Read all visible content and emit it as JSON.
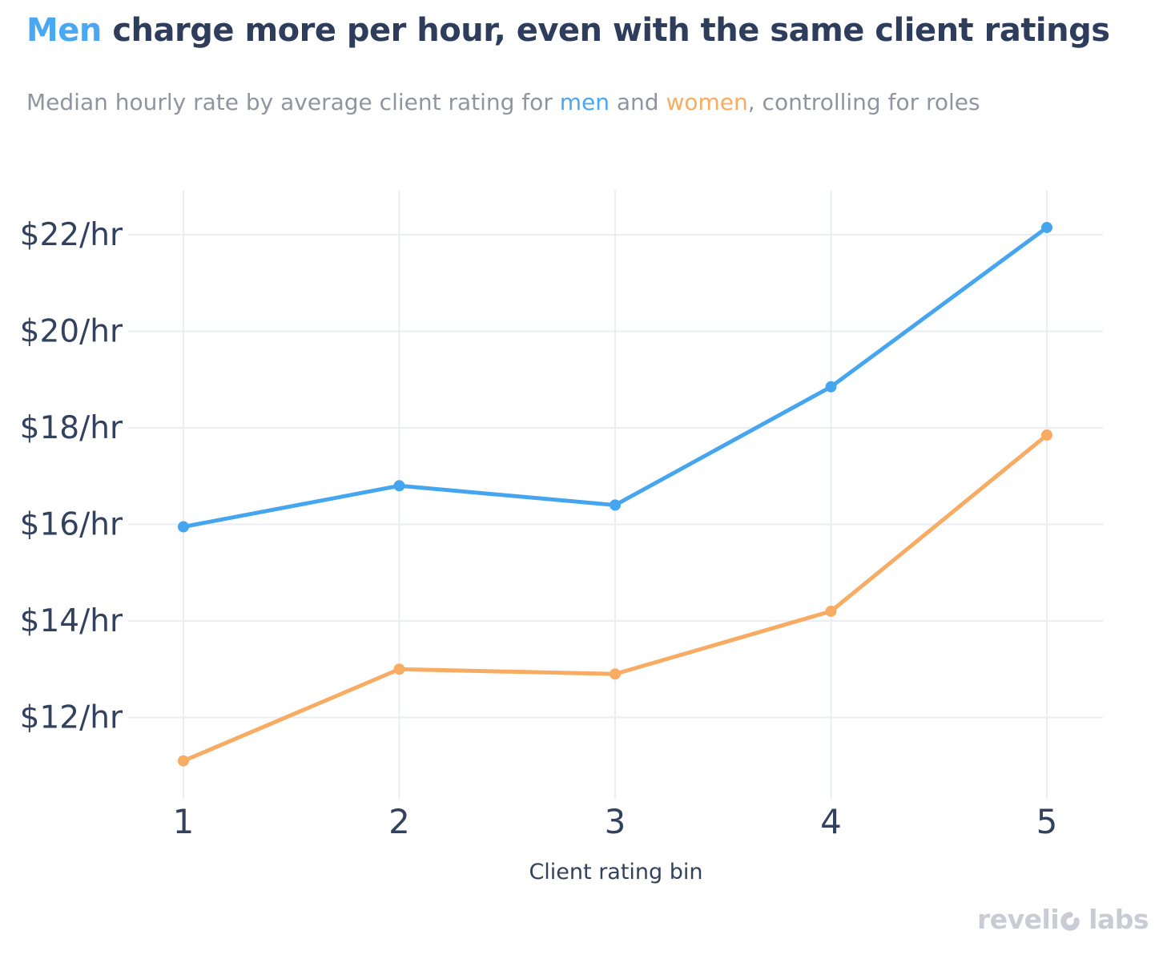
{
  "colors": {
    "navy": "#2e3d5b",
    "axis": "#32415e",
    "blue_text": "#4aa7f2",
    "orange_text": "#f8ab63",
    "subtitle_gray": "#8f959f",
    "gridline": "#ebedf1",
    "logo_gray": "#c9ccd4",
    "background": "#ffffff"
  },
  "header": {
    "title_parts": [
      {
        "text": "Men",
        "color": "blue_text"
      },
      {
        "text": " charge more per hour, even with the same client ratings",
        "color": "navy"
      }
    ],
    "subtitle_parts": [
      {
        "text": "Median hourly rate by average client rating for ",
        "color": "subtitle_gray"
      },
      {
        "text": "men",
        "color": "blue_text"
      },
      {
        "text": " and ",
        "color": "subtitle_gray"
      },
      {
        "text": "women",
        "color": "orange_text"
      },
      {
        "text": ", controlling for roles",
        "color": "subtitle_gray"
      }
    ]
  },
  "chart_data": {
    "type": "line",
    "title": "Men charge more per hour, even with the same client ratings",
    "subtitle": "Median hourly rate by average client rating for men and women, controlling for roles",
    "x": [
      1,
      2,
      3,
      4,
      5
    ],
    "xlabel": "Client rating bin",
    "ylabel": "",
    "x_ticks": [
      {
        "value": 1,
        "label": "1"
      },
      {
        "value": 2,
        "label": "2"
      },
      {
        "value": 3,
        "label": "3"
      },
      {
        "value": 4,
        "label": "4"
      },
      {
        "value": 5,
        "label": "5"
      }
    ],
    "y_ticks": [
      {
        "value": 12,
        "label": "$12/hr"
      },
      {
        "value": 14,
        "label": "$14/hr"
      },
      {
        "value": 16,
        "label": "$16/hr"
      },
      {
        "value": 18,
        "label": "$18/hr"
      },
      {
        "value": 20,
        "label": "$20/hr"
      },
      {
        "value": 22,
        "label": "$22/hr"
      }
    ],
    "ylim": [
      10.3,
      22.9
    ],
    "xlim": [
      0.74,
      5.26
    ],
    "grid": true,
    "legend_position": "none",
    "series": [
      {
        "name": "men",
        "color": "#45a6ef",
        "values": [
          15.95,
          16.8,
          16.4,
          18.85,
          22.15
        ]
      },
      {
        "name": "women",
        "color": "#f8ab63",
        "values": [
          11.1,
          13.0,
          12.9,
          14.2,
          17.85
        ]
      }
    ]
  },
  "footer": {
    "logo_part1": "reveli",
    "logo_part2": "labs",
    "logo_full": "revelio labs"
  }
}
